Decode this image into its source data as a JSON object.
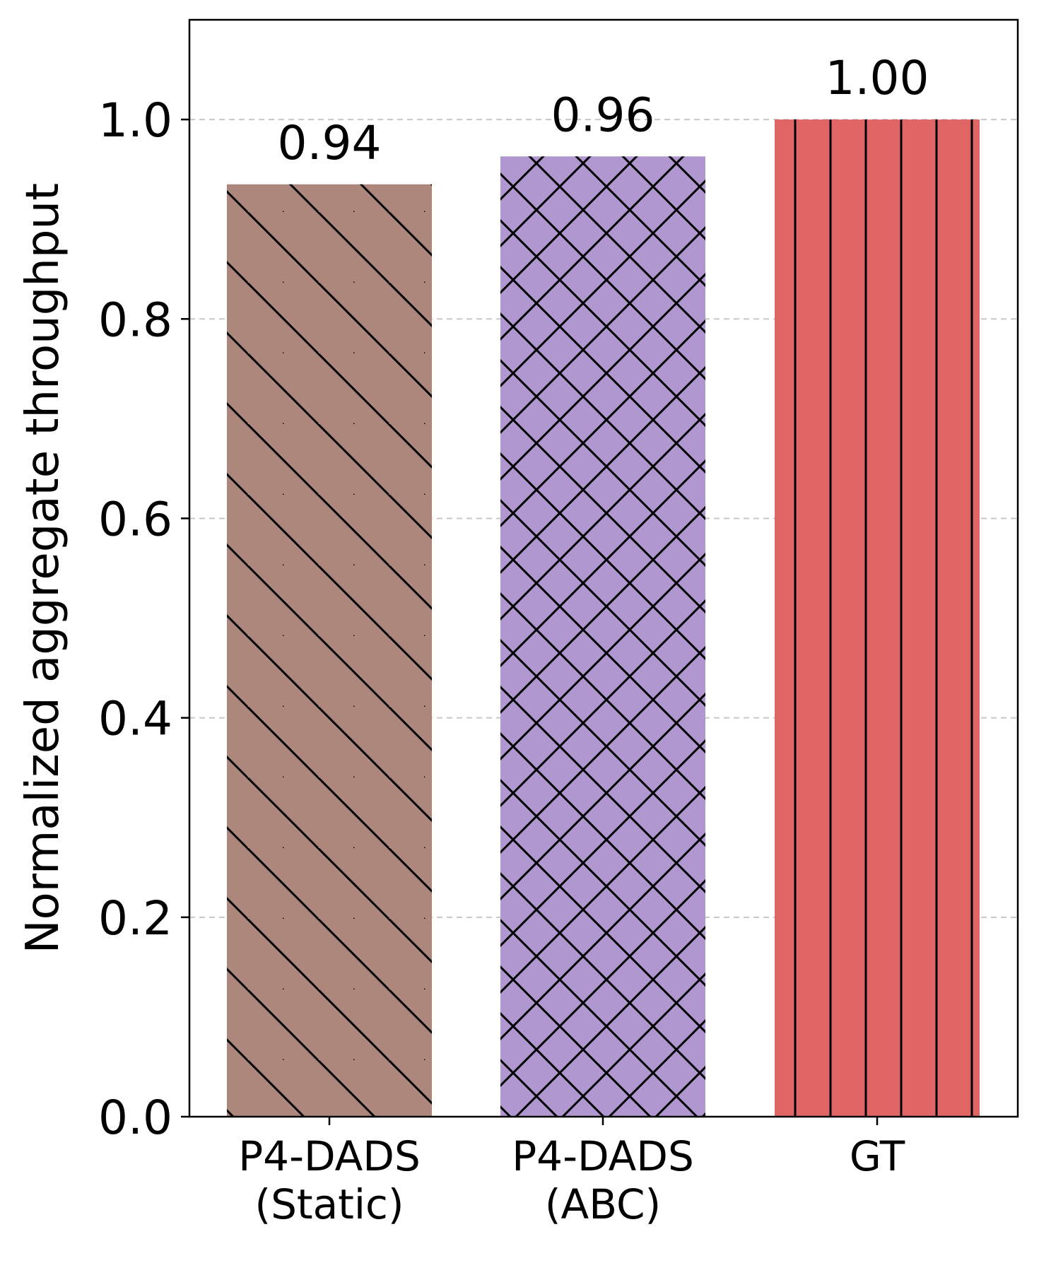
{
  "chart_data": {
    "type": "bar",
    "title": "",
    "xlabel": "",
    "ylabel": "Normalized aggregate throughput",
    "ylim": [
      0,
      1.1
    ],
    "yticks": [
      0.0,
      0.2,
      0.4,
      0.6,
      0.8,
      1.0
    ],
    "ytick_labels": [
      "0.0",
      "0.2",
      "0.4",
      "0.6",
      "0.8",
      "1.0"
    ],
    "grid": "horizontal dashed",
    "categories": [
      [
        "P4-DADS",
        "(Static)"
      ],
      [
        "P4-DADS",
        "(ABC)"
      ],
      [
        "GT"
      ]
    ],
    "values": [
      0.935,
      0.963,
      1.0
    ],
    "data_labels": [
      "0.94",
      "0.96",
      "1.00"
    ],
    "colors": [
      "#ad867c",
      "#b197d0",
      "#e06666"
    ],
    "hatches": [
      "diagonal",
      "crosshatch",
      "vertical"
    ]
  }
}
